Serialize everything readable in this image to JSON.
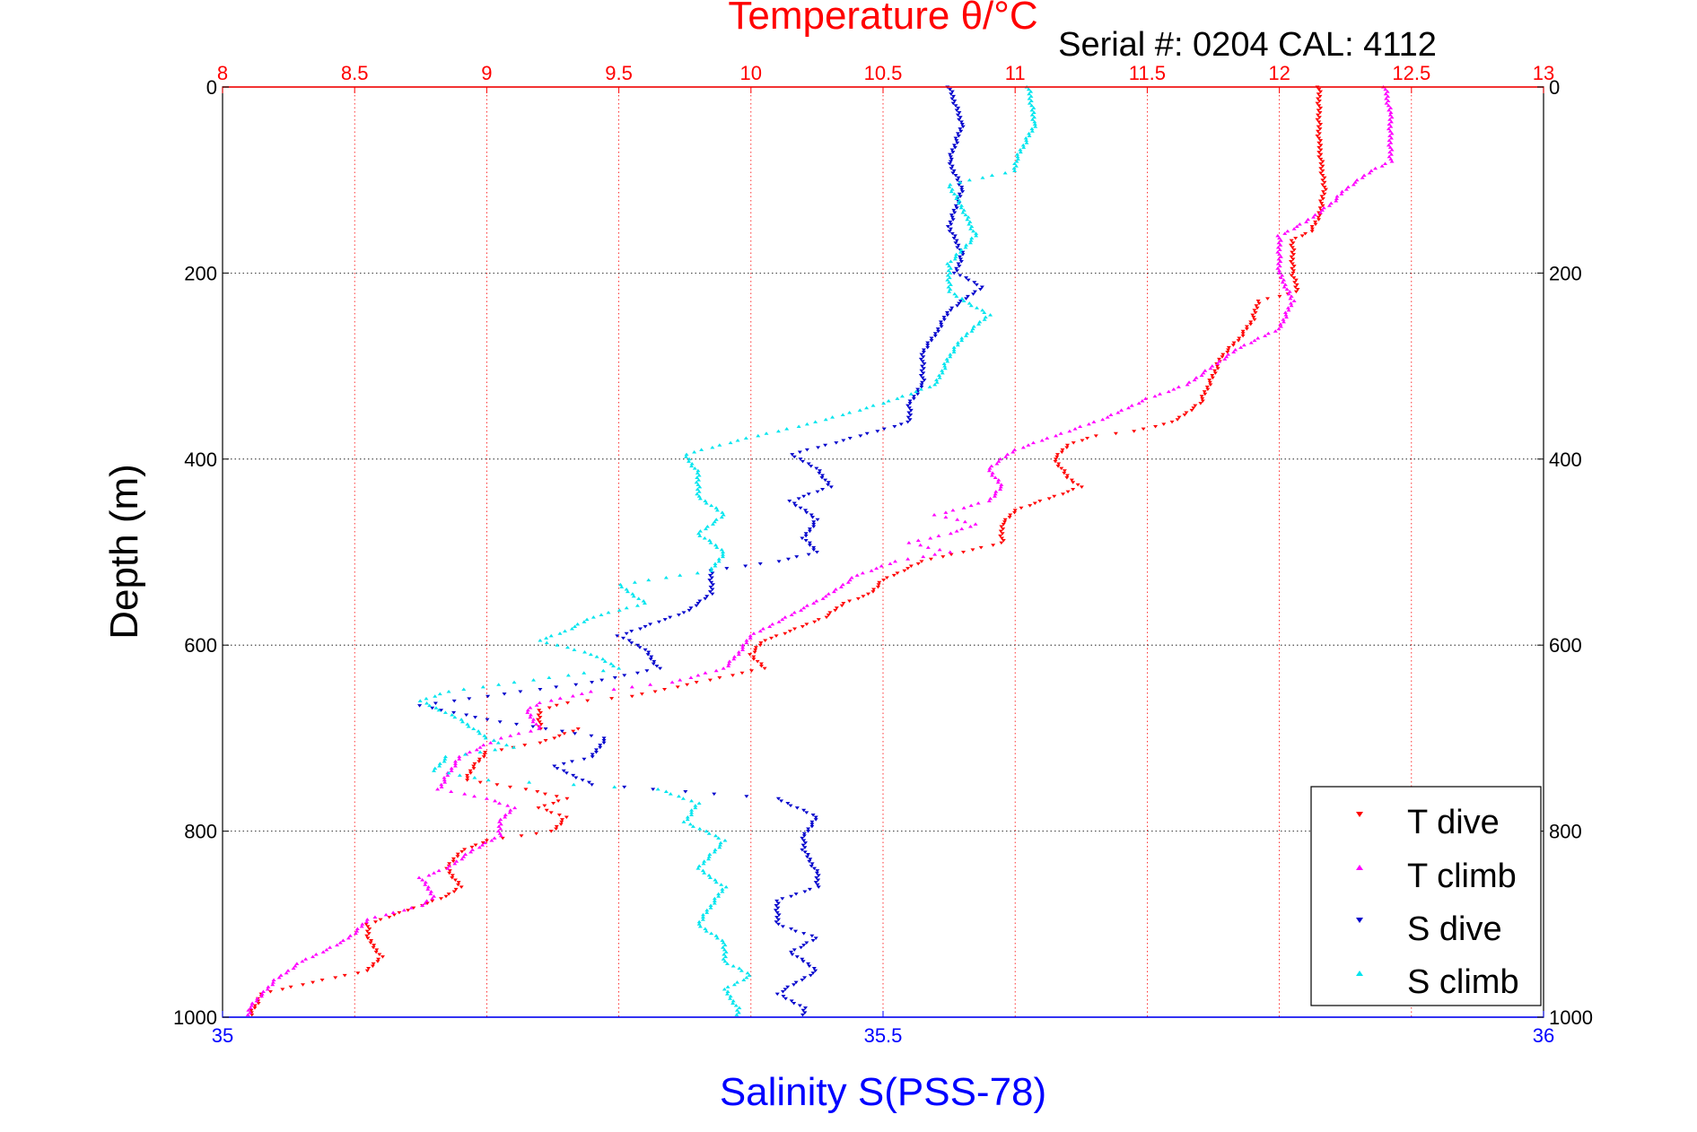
{
  "chart_data": {
    "type": "scatter",
    "title": "Temperature θ/°C",
    "annotation": "Serial #: 0204  CAL: 4112",
    "ylabel": "Depth (m)",
    "xlabel": "Salinity S(PSS-78)",
    "y_reversed": true,
    "ylim": [
      0,
      1000
    ],
    "y_ticks": [
      "0",
      "200",
      "400",
      "600",
      "800",
      "1000"
    ],
    "x_top": {
      "label": "Temperature θ/°C",
      "lim": [
        8,
        13
      ],
      "ticks": [
        "8",
        "8.5",
        "9",
        "9.5",
        "10",
        "10.5",
        "11",
        "11.5",
        "12",
        "12.5",
        "13"
      ]
    },
    "x_bottom": {
      "label": "Salinity S(PSS-78)",
      "lim": [
        35,
        36
      ],
      "ticks": [
        "35",
        "35.5",
        "36"
      ]
    },
    "grid": true,
    "legend_position": "bottom-right",
    "colors": {
      "t_dive": "#ff0000",
      "t_climb": "#ff00ff",
      "s_dive": "#0000cc",
      "s_climb": "#00e5ee",
      "top_axis": "#ff0000",
      "bottom_axis": "#0000ff"
    },
    "series": [
      {
        "name": "T dive",
        "axis": "temperature",
        "marker": "triangle-down",
        "color": "#ff0000",
        "points": [
          [
            12.15,
            0
          ],
          [
            12.15,
            60
          ],
          [
            12.17,
            110
          ],
          [
            12.15,
            140
          ],
          [
            12.12,
            155
          ],
          [
            12.05,
            165
          ],
          [
            12.05,
            200
          ],
          [
            12.07,
            220
          ],
          [
            11.92,
            230
          ],
          [
            11.9,
            250
          ],
          [
            11.85,
            270
          ],
          [
            11.78,
            290
          ],
          [
            11.75,
            310
          ],
          [
            11.7,
            340
          ],
          [
            11.6,
            360
          ],
          [
            11.45,
            370
          ],
          [
            11.3,
            375
          ],
          [
            11.2,
            385
          ],
          [
            11.15,
            400
          ],
          [
            11.2,
            420
          ],
          [
            11.25,
            430
          ],
          [
            11.1,
            445
          ],
          [
            11.0,
            455
          ],
          [
            10.95,
            470
          ],
          [
            10.95,
            490
          ],
          [
            10.8,
            500
          ],
          [
            10.65,
            510
          ],
          [
            10.5,
            530
          ],
          [
            10.45,
            545
          ],
          [
            10.35,
            555
          ],
          [
            10.28,
            570
          ],
          [
            10.15,
            585
          ],
          [
            10.05,
            595
          ],
          [
            10.0,
            610
          ],
          [
            10.05,
            625
          ],
          [
            9.8,
            640
          ],
          [
            9.55,
            655
          ],
          [
            9.3,
            662
          ],
          [
            9.2,
            670
          ],
          [
            9.2,
            690
          ],
          [
            9.35,
            690
          ],
          [
            9.2,
            705
          ],
          [
            9.0,
            715
          ],
          [
            8.95,
            730
          ],
          [
            8.92,
            745
          ],
          [
            9.15,
            755
          ],
          [
            9.3,
            765
          ],
          [
            9.2,
            775
          ],
          [
            9.3,
            785
          ],
          [
            9.25,
            800
          ],
          [
            9.0,
            810
          ],
          [
            8.9,
            822
          ],
          [
            8.85,
            840
          ],
          [
            8.9,
            860
          ],
          [
            8.85,
            870
          ],
          [
            8.7,
            885
          ],
          [
            8.55,
            900
          ],
          [
            8.55,
            915
          ],
          [
            8.6,
            935
          ],
          [
            8.55,
            950
          ],
          [
            8.3,
            965
          ],
          [
            8.15,
            975
          ],
          [
            8.12,
            990
          ],
          [
            8.1,
            1000
          ]
        ]
      },
      {
        "name": "T climb",
        "axis": "temperature",
        "marker": "triangle-up",
        "color": "#ff00ff",
        "points": [
          [
            12.4,
            0
          ],
          [
            12.42,
            30
          ],
          [
            12.42,
            80
          ],
          [
            12.35,
            90
          ],
          [
            12.25,
            110
          ],
          [
            12.2,
            125
          ],
          [
            12.1,
            145
          ],
          [
            12.0,
            160
          ],
          [
            12.0,
            200
          ],
          [
            12.05,
            230
          ],
          [
            12.0,
            260
          ],
          [
            11.85,
            280
          ],
          [
            11.75,
            300
          ],
          [
            11.65,
            320
          ],
          [
            11.5,
            335
          ],
          [
            11.35,
            355
          ],
          [
            11.2,
            370
          ],
          [
            11.0,
            390
          ],
          [
            10.9,
            410
          ],
          [
            10.95,
            430
          ],
          [
            10.9,
            445
          ],
          [
            10.7,
            460
          ],
          [
            10.85,
            470
          ],
          [
            10.75,
            480
          ],
          [
            10.6,
            490
          ],
          [
            10.75,
            500
          ],
          [
            10.55,
            510
          ],
          [
            10.4,
            525
          ],
          [
            10.3,
            545
          ],
          [
            10.2,
            560
          ],
          [
            10.1,
            575
          ],
          [
            10.0,
            590
          ],
          [
            9.95,
            610
          ],
          [
            9.9,
            625
          ],
          [
            9.7,
            640
          ],
          [
            9.4,
            650
          ],
          [
            9.2,
            662
          ],
          [
            9.15,
            670
          ],
          [
            9.2,
            690
          ],
          [
            9.05,
            700
          ],
          [
            8.9,
            720
          ],
          [
            8.85,
            740
          ],
          [
            8.82,
            755
          ],
          [
            9.0,
            765
          ],
          [
            9.1,
            775
          ],
          [
            9.05,
            790
          ],
          [
            9.05,
            805
          ],
          [
            8.95,
            820
          ],
          [
            8.85,
            840
          ],
          [
            8.75,
            850
          ],
          [
            8.8,
            870
          ],
          [
            8.75,
            880
          ],
          [
            8.55,
            895
          ],
          [
            8.5,
            910
          ],
          [
            8.45,
            920
          ],
          [
            8.3,
            940
          ],
          [
            8.2,
            960
          ],
          [
            8.15,
            975
          ],
          [
            8.1,
            990
          ],
          [
            8.1,
            1000
          ]
        ]
      },
      {
        "name": "S dive",
        "axis": "salinity",
        "marker": "triangle-down",
        "color": "#0000cc",
        "points": [
          [
            35.55,
            0
          ],
          [
            35.56,
            40
          ],
          [
            35.55,
            80
          ],
          [
            35.56,
            110
          ],
          [
            35.555,
            130
          ],
          [
            35.55,
            150
          ],
          [
            35.56,
            180
          ],
          [
            35.555,
            200
          ],
          [
            35.575,
            215
          ],
          [
            35.55,
            240
          ],
          [
            35.54,
            265
          ],
          [
            35.53,
            285
          ],
          [
            35.53,
            320
          ],
          [
            35.52,
            340
          ],
          [
            35.52,
            360
          ],
          [
            35.47,
            380
          ],
          [
            35.43,
            395
          ],
          [
            35.45,
            410
          ],
          [
            35.46,
            430
          ],
          [
            35.43,
            445
          ],
          [
            35.45,
            465
          ],
          [
            35.44,
            485
          ],
          [
            35.45,
            500
          ],
          [
            35.42,
            510
          ],
          [
            35.37,
            520
          ],
          [
            35.37,
            545
          ],
          [
            35.35,
            565
          ],
          [
            35.33,
            575
          ],
          [
            35.3,
            590
          ],
          [
            35.32,
            605
          ],
          [
            35.33,
            625
          ],
          [
            35.28,
            640
          ],
          [
            35.2,
            655
          ],
          [
            35.15,
            665
          ],
          [
            35.2,
            680
          ],
          [
            35.29,
            700
          ],
          [
            35.28,
            720
          ],
          [
            35.25,
            730
          ],
          [
            35.28,
            750
          ],
          [
            35.42,
            765
          ],
          [
            35.45,
            785
          ],
          [
            35.44,
            805
          ],
          [
            35.44,
            820
          ],
          [
            35.45,
            845
          ],
          [
            35.45,
            860
          ],
          [
            35.42,
            875
          ],
          [
            35.42,
            900
          ],
          [
            35.45,
            915
          ],
          [
            35.43,
            930
          ],
          [
            35.45,
            950
          ],
          [
            35.42,
            975
          ],
          [
            35.44,
            990
          ],
          [
            35.44,
            1000
          ]
        ]
      },
      {
        "name": "S climb",
        "axis": "salinity",
        "marker": "triangle-up",
        "color": "#00e5ee",
        "points": [
          [
            35.61,
            0
          ],
          [
            35.615,
            40
          ],
          [
            35.6,
            80
          ],
          [
            35.6,
            90
          ],
          [
            35.55,
            105
          ],
          [
            35.56,
            130
          ],
          [
            35.57,
            160
          ],
          [
            35.55,
            190
          ],
          [
            35.55,
            220
          ],
          [
            35.58,
            245
          ],
          [
            35.56,
            270
          ],
          [
            35.55,
            290
          ],
          [
            35.54,
            320
          ],
          [
            35.5,
            340
          ],
          [
            35.45,
            360
          ],
          [
            35.39,
            380
          ],
          [
            35.35,
            395
          ],
          [
            35.36,
            415
          ],
          [
            35.36,
            440
          ],
          [
            35.38,
            460
          ],
          [
            35.36,
            480
          ],
          [
            35.38,
            500
          ],
          [
            35.37,
            520
          ],
          [
            35.3,
            535
          ],
          [
            35.32,
            555
          ],
          [
            35.28,
            570
          ],
          [
            35.26,
            585
          ],
          [
            35.24,
            595
          ],
          [
            35.28,
            610
          ],
          [
            35.3,
            625
          ],
          [
            35.17,
            650
          ],
          [
            35.15,
            660
          ],
          [
            35.18,
            680
          ],
          [
            35.2,
            700
          ],
          [
            35.22,
            710
          ],
          [
            35.17,
            720
          ],
          [
            35.16,
            735
          ],
          [
            35.2,
            745
          ],
          [
            35.33,
            755
          ],
          [
            35.36,
            770
          ],
          [
            35.35,
            790
          ],
          [
            35.38,
            810
          ],
          [
            35.37,
            825
          ],
          [
            35.36,
            840
          ],
          [
            35.38,
            860
          ],
          [
            35.37,
            880
          ],
          [
            35.36,
            900
          ],
          [
            35.38,
            920
          ],
          [
            35.38,
            940
          ],
          [
            35.4,
            955
          ],
          [
            35.38,
            970
          ],
          [
            35.39,
            990
          ],
          [
            35.39,
            1000
          ]
        ]
      }
    ]
  }
}
